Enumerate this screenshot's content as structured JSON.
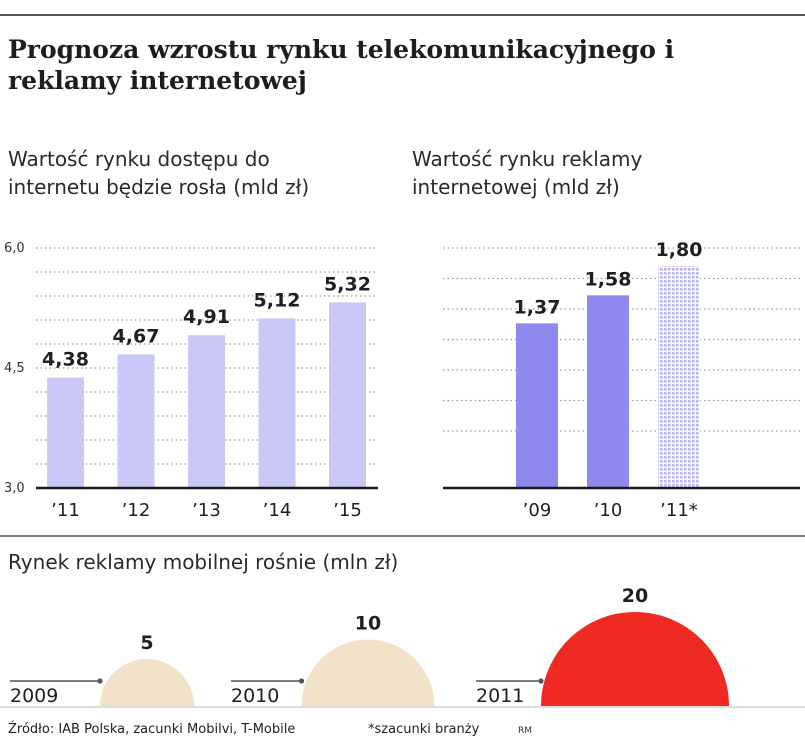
{
  "title": "Prognoza wzrostu rynku telekomunikacyjnego i reklamy internetowej",
  "colors": {
    "bar_light": "#c9c8f6",
    "bar_dark": "#8d89ef",
    "bar_estimate": "#b7b3f4",
    "mobile_small": "#f1e2c8",
    "mobile_large": "#ee2a22",
    "axis": "#1a1a1a",
    "grid": "#9a9a9a"
  },
  "chart_data": [
    {
      "id": "internet-access-market",
      "type": "bar",
      "title": "Wartość rynku dostępu do internetu będzie rosła (mld zł)",
      "categories": [
        "’11",
        "’12",
        "’13",
        "’14",
        "’15"
      ],
      "values": [
        4.38,
        4.67,
        4.91,
        5.12,
        5.32
      ],
      "value_labels": [
        "4,38",
        "4,67",
        "4,91",
        "5,12",
        "5,32"
      ],
      "ylim": [
        3.0,
        6.0
      ],
      "yticks": [
        3.0,
        4.5,
        6.0
      ],
      "ytick_labels": [
        "3,0",
        "4,5",
        "6,0"
      ],
      "grid": true,
      "xlabel": "",
      "ylabel": ""
    },
    {
      "id": "internet-ad-market",
      "type": "bar",
      "title": "Wartość rynku reklamy internetowej (mld zł)",
      "categories": [
        "’09",
        "’10",
        "’11*"
      ],
      "values": [
        1.37,
        1.58,
        1.8
      ],
      "value_labels": [
        "1,37",
        "1,58",
        "1,80"
      ],
      "estimated": [
        false,
        false,
        true
      ],
      "ylim": [
        0.0,
        1.8
      ],
      "grid": true,
      "xlabel": "",
      "ylabel": ""
    },
    {
      "id": "mobile-ad-market",
      "type": "area",
      "title": "Rynek reklamy mobilnej rośnie (mln zł)",
      "categories": [
        "2009",
        "2010",
        "2011"
      ],
      "values": [
        5,
        10,
        20
      ],
      "value_labels": [
        "5",
        "10",
        "20"
      ],
      "shape": "semicircle"
    }
  ],
  "footer": {
    "source": "Źródło: IAB Polska, zacunki Mobilvi, T-Mobile",
    "footnote": "*szacunki branży",
    "author": "RM"
  }
}
